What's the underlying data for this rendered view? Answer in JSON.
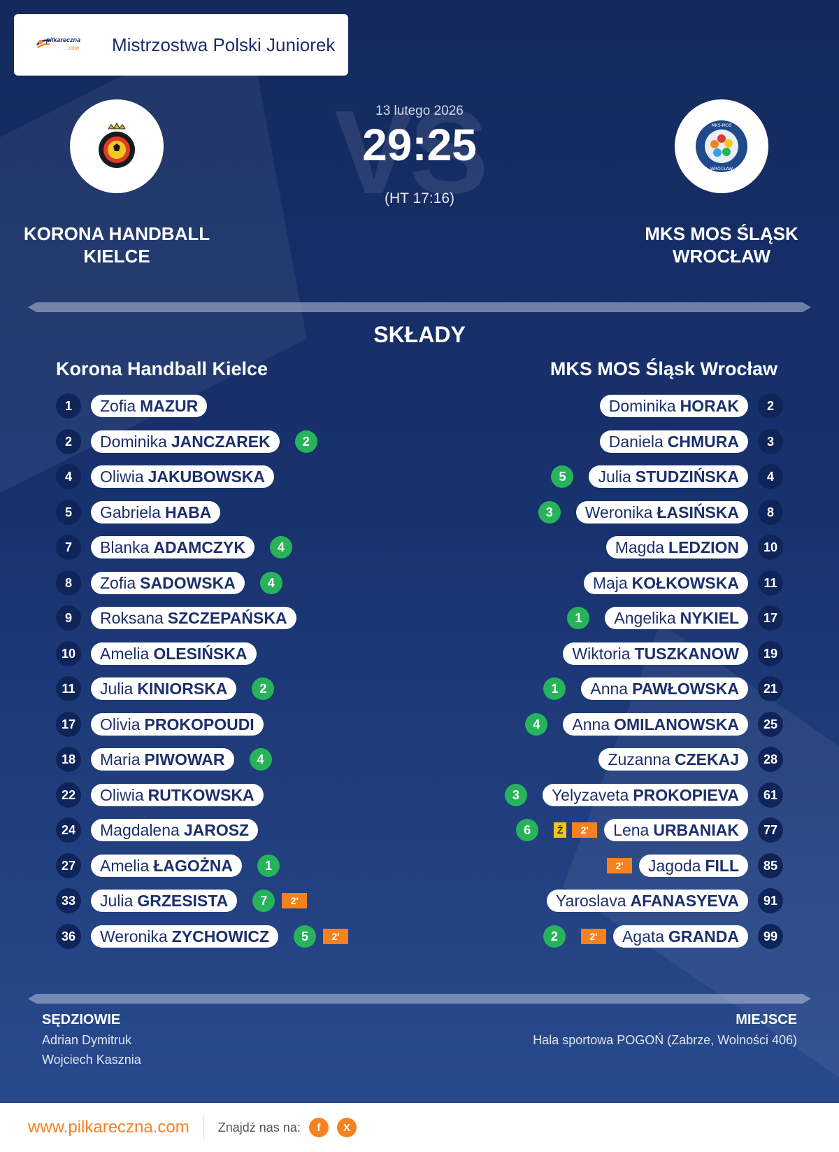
{
  "competition": {
    "title": "Mistrzostwa Polski Juniorek",
    "logo_text_top": "pilkareczna",
    "logo_text_bottom": ".com"
  },
  "match": {
    "date": "13 lutego 2026",
    "score": "29:25",
    "halftime": "(HT 17:16)",
    "vs_watermark": "VS"
  },
  "home": {
    "name_line1": "KORONA HANDBALL",
    "name_line2": "KIELCE",
    "lineup_title": "Korona Handball Kielce"
  },
  "away": {
    "name_line1": "MKS MOS ŚLĄSK",
    "name_line2": "WROCŁAW",
    "lineup_title": "MKS MOS Śląsk Wrocław",
    "crest_text_top": "MKS-MOS",
    "crest_text_bottom": "WROCŁAW"
  },
  "section_title": "SKŁADY",
  "home_players": [
    {
      "number": "1",
      "first": "Zofia",
      "last": "MAZUR",
      "goals": "",
      "susp": ""
    },
    {
      "number": "2",
      "first": "Dominika",
      "last": "JANCZAREK",
      "goals": "2",
      "susp": ""
    },
    {
      "number": "4",
      "first": "Oliwia",
      "last": "JAKUBOWSKA",
      "goals": "",
      "susp": ""
    },
    {
      "number": "5",
      "first": "Gabriela",
      "last": "HABA",
      "goals": "",
      "susp": ""
    },
    {
      "number": "7",
      "first": "Blanka",
      "last": "ADAMCZYK",
      "goals": "4",
      "susp": ""
    },
    {
      "number": "8",
      "first": "Zofia",
      "last": "SADOWSKA",
      "goals": "4",
      "susp": ""
    },
    {
      "number": "9",
      "first": "Roksana",
      "last": "SZCZEPAŃSKA",
      "goals": "",
      "susp": ""
    },
    {
      "number": "10",
      "first": "Amelia",
      "last": "OLESIŃSKA",
      "goals": "",
      "susp": ""
    },
    {
      "number": "11",
      "first": "Julia",
      "last": "KINIORSKA",
      "goals": "2",
      "susp": ""
    },
    {
      "number": "17",
      "first": "Olivia",
      "last": "PROKOPOUDI",
      "goals": "",
      "susp": ""
    },
    {
      "number": "18",
      "first": "Maria",
      "last": "PIWOWAR",
      "goals": "4",
      "susp": ""
    },
    {
      "number": "22",
      "first": "Oliwia",
      "last": "RUTKOWSKA",
      "goals": "",
      "susp": ""
    },
    {
      "number": "24",
      "first": "Magdalena",
      "last": "JAROSZ",
      "goals": "",
      "susp": ""
    },
    {
      "number": "27",
      "first": "Amelia",
      "last": "ŁAGOŻNA",
      "goals": "1",
      "susp": ""
    },
    {
      "number": "33",
      "first": "Julia",
      "last": "GRZESISTA",
      "goals": "7",
      "susp": "2'"
    },
    {
      "number": "36",
      "first": "Weronika",
      "last": "ZYCHOWICZ",
      "goals": "5",
      "susp": "2'"
    }
  ],
  "away_players": [
    {
      "number": "2",
      "first": "Dominika",
      "last": "HORAK",
      "goals": "",
      "yellow": "",
      "susp": ""
    },
    {
      "number": "3",
      "first": "Daniela",
      "last": "CHMURA",
      "goals": "",
      "yellow": "",
      "susp": ""
    },
    {
      "number": "4",
      "first": "Julia",
      "last": "STUDZIŃSKA",
      "goals": "5",
      "yellow": "",
      "susp": ""
    },
    {
      "number": "8",
      "first": "Weronika",
      "last": "ŁASIŃSKA",
      "goals": "3",
      "yellow": "",
      "susp": ""
    },
    {
      "number": "10",
      "first": "Magda",
      "last": "LEDZION",
      "goals": "",
      "yellow": "",
      "susp": ""
    },
    {
      "number": "11",
      "first": "Maja",
      "last": "KOŁKOWSKA",
      "goals": "",
      "yellow": "",
      "susp": ""
    },
    {
      "number": "17",
      "first": "Angelika",
      "last": "NYKIEL",
      "goals": "1",
      "yellow": "",
      "susp": ""
    },
    {
      "number": "19",
      "first": "Wiktoria",
      "last": "TUSZKANOW",
      "goals": "",
      "yellow": "",
      "susp": ""
    },
    {
      "number": "21",
      "first": "Anna",
      "last": "PAWŁOWSKA",
      "goals": "1",
      "yellow": "",
      "susp": ""
    },
    {
      "number": "25",
      "first": "Anna",
      "last": "OMILANOWSKA",
      "goals": "4",
      "yellow": "",
      "susp": ""
    },
    {
      "number": "28",
      "first": "Zuzanna",
      "last": "CZEKAJ",
      "goals": "",
      "yellow": "",
      "susp": ""
    },
    {
      "number": "61",
      "first": "Yelyzaveta",
      "last": "PROKOPIEVA",
      "goals": "3",
      "yellow": "",
      "susp": ""
    },
    {
      "number": "77",
      "first": "Lena",
      "last": "URBANIAK",
      "goals": "6",
      "yellow": "Ż",
      "susp": "2'"
    },
    {
      "number": "85",
      "first": "Jagoda",
      "last": "FILL",
      "goals": "",
      "yellow": "",
      "susp": "2'"
    },
    {
      "number": "91",
      "first": "Yaroslava",
      "last": "AFANASYEVA",
      "goals": "",
      "yellow": "",
      "susp": ""
    },
    {
      "number": "99",
      "first": "Agata",
      "last": "GRANDA",
      "goals": "2",
      "yellow": "",
      "susp": "2'"
    }
  ],
  "referees": {
    "title": "SĘDZIOWIE",
    "names": [
      "Adrian Dymitruk",
      "Wojciech Kasznia"
    ]
  },
  "venue": {
    "title": "MIEJSCE",
    "name": "Hala sportowa POGOŃ (Zabrze, Wolności 406)"
  },
  "footer": {
    "url": "www.pilkareczna.com",
    "find_us": "Znajdź nas na:",
    "social": [
      "f",
      "X"
    ]
  },
  "colors": {
    "background": "#18326e",
    "accent": "#f58220",
    "goal": "#27b35a",
    "yellow_card": "#f5c21b",
    "number_badge": "#0f2458",
    "text_dark": "#1c2f6b"
  }
}
